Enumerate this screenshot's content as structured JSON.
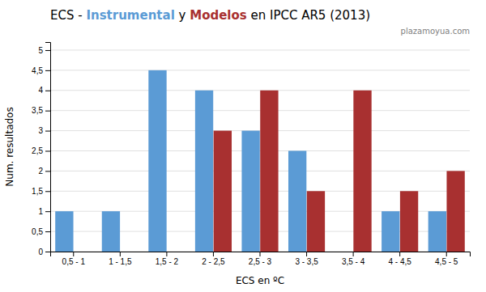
{
  "chart_data": {
    "type": "bar",
    "title": "ECS - Instrumental y Modelos en IPCC AR5 (2013)",
    "x_label": "ECS en ºC",
    "y_label": "Num. resultados",
    "categories": [
      "0,5 - 1",
      "1 - 1,5",
      "1,5 - 2",
      "2 - 2,5",
      "2,5 - 3",
      "3 - 3,5",
      "3,5 - 4",
      "4 - 4,5",
      "4,5 - 5"
    ],
    "series": [
      {
        "name": "Instrumental",
        "color": "#5b9bd5",
        "values": [
          1,
          1,
          4.5,
          4,
          3,
          2.5,
          0,
          1,
          1
        ]
      },
      {
        "name": "Modelos",
        "color": "#a83030",
        "values": [
          0,
          0,
          0,
          3,
          4,
          1.5,
          4,
          1.5,
          2
        ]
      }
    ],
    "ylim": [
      0,
      5.2
    ],
    "yticks": [
      0,
      {
        "value": 0.5,
        "label": "0,5"
      },
      1,
      {
        "value": 1.5,
        "label": "1,5"
      },
      2,
      {
        "value": 2.5,
        "label": "2,5"
      },
      3,
      {
        "value": 3.5,
        "label": "3,5"
      },
      4,
      {
        "value": 4.5,
        "label": "4,5"
      },
      5
    ],
    "grid": true,
    "annotations": [
      {
        "text": "plazamoyua.com"
      }
    ]
  }
}
